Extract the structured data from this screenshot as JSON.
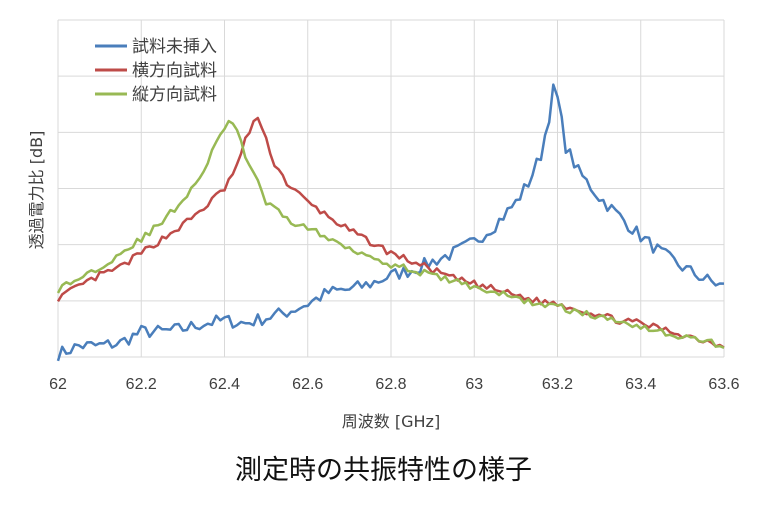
{
  "caption": "測定時の共振特性の様子",
  "chart_data": {
    "type": "line",
    "title": "",
    "xlabel": "周波数 [GHz]",
    "ylabel": "透過電力比 [dB]",
    "xlim": [
      62,
      63.6
    ],
    "ylim": [
      0,
      6
    ],
    "x_ticks": [
      "62",
      "62.2",
      "62.4",
      "62.6",
      "62.8",
      "63",
      "63.2",
      "63.4",
      "63.6"
    ],
    "y_ticks_labeled": false,
    "grid": true,
    "legend_position": "top-left",
    "series": [
      {
        "name": "試料未挿入",
        "color": "#4a7ebb",
        "x": [
          62.0,
          62.05,
          62.1,
          62.15,
          62.2,
          62.25,
          62.3,
          62.35,
          62.4,
          62.45,
          62.5,
          62.55,
          62.6,
          62.65,
          62.7,
          62.75,
          62.8,
          62.85,
          62.9,
          62.95,
          63.0,
          63.05,
          63.1,
          63.13,
          63.16,
          63.18,
          63.19,
          63.2,
          63.22,
          63.25,
          63.3,
          63.35,
          63.4,
          63.45,
          63.5,
          63.55,
          63.6
        ],
        "y": [
          0.05,
          0.2,
          0.2,
          0.25,
          0.45,
          0.45,
          0.5,
          0.6,
          0.65,
          0.6,
          0.7,
          0.8,
          0.95,
          1.15,
          1.2,
          1.3,
          1.45,
          1.55,
          1.7,
          1.85,
          2.05,
          2.35,
          2.75,
          3.1,
          3.6,
          4.3,
          4.75,
          4.6,
          3.75,
          3.3,
          2.85,
          2.5,
          2.15,
          1.85,
          1.6,
          1.4,
          1.25
        ]
      },
      {
        "name": "横方向試料",
        "color": "#be4b48",
        "x": [
          62.0,
          62.05,
          62.1,
          62.15,
          62.2,
          62.25,
          62.3,
          62.35,
          62.4,
          62.43,
          62.45,
          62.47,
          62.48,
          62.5,
          62.52,
          62.55,
          62.6,
          62.65,
          62.7,
          62.75,
          62.8,
          62.85,
          62.9,
          62.95,
          63.0,
          63.05,
          63.1,
          63.15,
          63.2,
          63.25,
          63.3,
          63.35,
          63.4,
          63.45,
          63.5,
          63.55,
          63.6
        ],
        "y": [
          1.05,
          1.25,
          1.45,
          1.6,
          1.85,
          2.1,
          2.35,
          2.65,
          3.0,
          3.4,
          3.85,
          4.2,
          4.25,
          3.85,
          3.45,
          3.1,
          2.75,
          2.5,
          2.25,
          2.05,
          1.85,
          1.7,
          1.55,
          1.4,
          1.3,
          1.2,
          1.1,
          1.0,
          0.95,
          0.85,
          0.75,
          0.65,
          0.6,
          0.5,
          0.4,
          0.3,
          0.2
        ]
      },
      {
        "name": "縦方向試料",
        "color": "#98b954",
        "x": [
          62.0,
          62.05,
          62.1,
          62.15,
          62.2,
          62.25,
          62.3,
          62.35,
          62.38,
          62.4,
          62.41,
          62.43,
          62.45,
          62.48,
          62.5,
          62.55,
          62.6,
          62.65,
          62.7,
          62.75,
          62.8,
          62.85,
          62.9,
          62.95,
          63.0,
          63.05,
          63.1,
          63.15,
          63.2,
          63.25,
          63.3,
          63.35,
          63.4,
          63.45,
          63.5,
          63.55,
          63.6
        ],
        "y": [
          1.2,
          1.4,
          1.6,
          1.85,
          2.1,
          2.4,
          2.8,
          3.3,
          3.8,
          4.1,
          4.2,
          4.0,
          3.6,
          3.1,
          2.75,
          2.45,
          2.3,
          2.1,
          1.95,
          1.8,
          1.65,
          1.55,
          1.45,
          1.35,
          1.25,
          1.15,
          1.05,
          0.95,
          0.9,
          0.8,
          0.7,
          0.65,
          0.55,
          0.45,
          0.35,
          0.3,
          0.2
        ]
      }
    ]
  }
}
